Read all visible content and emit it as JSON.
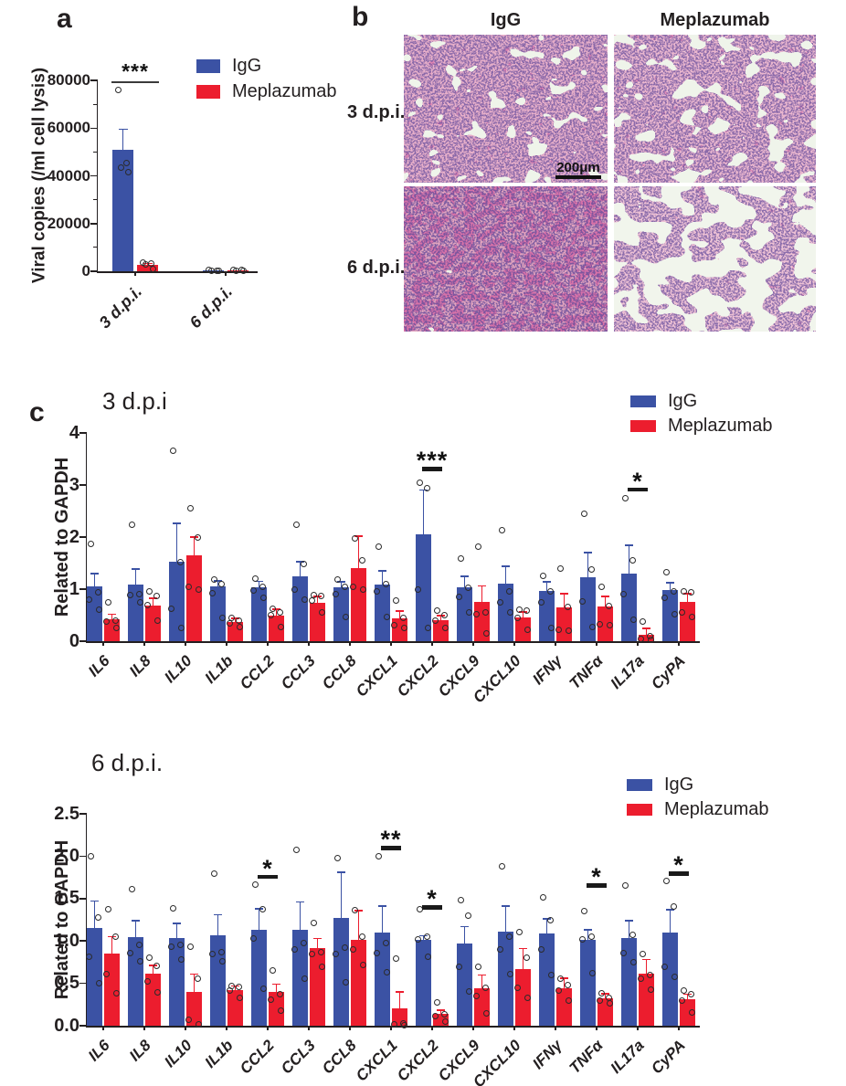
{
  "panels": {
    "a": {
      "label": "a"
    },
    "b": {
      "label": "b",
      "column_headers": [
        "IgG",
        "Meplazumab"
      ],
      "row_labels": [
        "3 d.p.i.",
        "6 d.p.i."
      ],
      "scale_bar_label": "200μm"
    },
    "c": {
      "label": "c"
    }
  },
  "colors": {
    "igg_blue": "#3B52A4",
    "meplazumab_red": "#EC1D2E",
    "text": "#231F20"
  },
  "chart_data": [
    {
      "id": "viral_copies",
      "panel": "a",
      "type": "bar",
      "title": "",
      "ylabel": "Viral copies (/ml cell lysis)",
      "ylim": [
        0,
        80000
      ],
      "yticks": [
        0,
        20000,
        40000,
        60000,
        80000
      ],
      "ytick_labels": [
        "0",
        "20000",
        "40000",
        "60000",
        "80000"
      ],
      "grid": false,
      "legend_position": "top-right",
      "categories": [
        "3 d.p.i.",
        "6 d.p.i."
      ],
      "series": [
        {
          "name": "IgG",
          "color": "#3B52A4",
          "values": [
            51000,
            300
          ],
          "errors": [
            8500,
            150
          ],
          "points": [
            [
              76000,
              45500,
              43500,
              41500
            ],
            [
              500,
              350,
              250,
              150
            ]
          ]
        },
        {
          "name": "Meplazumab",
          "color": "#EC1D2E",
          "values": [
            2500,
            350
          ],
          "errors": [
            700,
            150
          ],
          "points": [
            [
              3600,
              3300,
              3000,
              900
            ],
            [
              600,
              450,
              350,
              250
            ]
          ]
        }
      ],
      "significance": [
        {
          "category": "3 d.p.i.",
          "label": "***",
          "y": 79500,
          "span": "pair"
        }
      ]
    },
    {
      "id": "cytokines_3dpi",
      "panel": "c",
      "type": "bar",
      "title": "3 d.p.i",
      "ylabel": "Related to GAPDH",
      "ylim": [
        0,
        4
      ],
      "yticks": [
        0,
        1,
        2,
        3,
        4
      ],
      "ytick_labels": [
        "0",
        "1",
        "2",
        "3",
        "4"
      ],
      "grid": false,
      "legend_position": "top-right",
      "categories": [
        "IL6",
        "IL8",
        "IL10",
        "IL1b",
        "CCL2",
        "CCL3",
        "CCL8",
        "CXCL1",
        "CXCL2",
        "CXCL9",
        "CXCL10",
        "IFNγ",
        "TNFα",
        "IL17a",
        "CyPA"
      ],
      "series": [
        {
          "name": "IgG",
          "color": "#3B52A4",
          "values": [
            1.05,
            1.09,
            1.52,
            1.05,
            1.04,
            1.25,
            1.04,
            1.09,
            2.05,
            1.04,
            1.11,
            0.97,
            1.23,
            1.3,
            0.98
          ],
          "errors": [
            0.25,
            0.3,
            0.74,
            0.11,
            0.11,
            0.28,
            0.1,
            0.26,
            0.85,
            0.21,
            0.33,
            0.17,
            0.47,
            0.54,
            0.14
          ],
          "points": [
            [
              1.86,
              0.94,
              0.79,
              0.6
            ],
            [
              2.23,
              0.9,
              0.88,
              0.74
            ],
            [
              3.65,
              1.51,
              0.63,
              0.26
            ],
            [
              1.18,
              1.1,
              0.92,
              0.44
            ],
            [
              1.21,
              1.05,
              0.98,
              0.84
            ],
            [
              2.23,
              1.49,
              1.0,
              0.79
            ],
            [
              1.18,
              1.05,
              0.91,
              0.46
            ],
            [
              1.81,
              1.1,
              0.95,
              0.46
            ],
            [
              3.04,
              2.93,
              1.0,
              0.25
            ],
            [
              1.58,
              1.02,
              0.85,
              0.55
            ],
            [
              2.14,
              0.95,
              0.75,
              0.56
            ],
            [
              1.25,
              0.95,
              0.74,
              0.25
            ],
            [
              2.44,
              1.38,
              0.77,
              0.28
            ],
            [
              2.75,
              1.56,
              0.9,
              0.42
            ],
            [
              1.32,
              0.95,
              0.83,
              0.51
            ]
          ]
        },
        {
          "name": "Meplazumab",
          "color": "#EC1D2E",
          "values": [
            0.42,
            0.68,
            1.65,
            0.36,
            0.49,
            0.74,
            1.4,
            0.44,
            0.4,
            0.75,
            0.46,
            0.65,
            0.67,
            0.12,
            0.75
          ],
          "errors": [
            0.1,
            0.14,
            0.35,
            0.08,
            0.12,
            0.12,
            0.62,
            0.14,
            0.09,
            0.31,
            0.1,
            0.26,
            0.19,
            0.13,
            0.16
          ],
          "points": [
            [
              0.74,
              0.4,
              0.38,
              0.25
            ],
            [
              0.95,
              0.86,
              0.7,
              0.39
            ],
            [
              2.56,
              2.0,
              1.05,
              1.0
            ],
            [
              0.44,
              0.4,
              0.35,
              0.28
            ],
            [
              0.62,
              0.55,
              0.5,
              0.28
            ],
            [
              0.88,
              0.86,
              0.78,
              0.55
            ],
            [
              1.98,
              1.55,
              1.05,
              1.0
            ],
            [
              0.78,
              0.45,
              0.3,
              0.25
            ],
            [
              0.58,
              0.5,
              0.4,
              0.25
            ],
            [
              1.81,
              0.55,
              0.52,
              0.15
            ],
            [
              0.6,
              0.58,
              0.45,
              0.22
            ],
            [
              1.4,
              0.66,
              0.22,
              0.2
            ],
            [
              1.05,
              0.68,
              0.32,
              0.3
            ],
            [
              0.37,
              0.1,
              0.05,
              0.02
            ],
            [
              0.95,
              0.93,
              0.56,
              0.47
            ]
          ]
        }
      ],
      "significance": [
        {
          "category": "CXCL2",
          "label": "***",
          "y": 3.35,
          "span": "center"
        },
        {
          "category": "IL17a",
          "label": "*",
          "y": 2.95,
          "span": "center"
        }
      ]
    },
    {
      "id": "cytokines_6dpi",
      "panel": "c",
      "type": "bar",
      "title": "6 d.p.i.",
      "ylabel": "Related to GAPDH",
      "ylim": [
        0,
        2.5
      ],
      "yticks": [
        0,
        0.5,
        1.0,
        1.5,
        2.0,
        2.5
      ],
      "ytick_labels": [
        "0.0",
        "0.5",
        "1.0",
        "1.5",
        "2.0",
        "2.5"
      ],
      "grid": false,
      "legend_position": "top-right",
      "categories": [
        "IL6",
        "IL8",
        "IL10",
        "IL1b",
        "CCL2",
        "CCL3",
        "CCL8",
        "CXCL1",
        "CXCL2",
        "CXCL9",
        "CXCL10",
        "IFNγ",
        "TNFα",
        "IL17a",
        "CyPA"
      ],
      "series": [
        {
          "name": "IgG",
          "color": "#3B52A4",
          "values": [
            1.15,
            1.05,
            1.03,
            1.07,
            1.13,
            1.13,
            1.27,
            1.1,
            1.01,
            0.97,
            1.11,
            1.09,
            1.01,
            1.03,
            1.1
          ],
          "errors": [
            0.32,
            0.19,
            0.18,
            0.24,
            0.25,
            0.33,
            0.54,
            0.31,
            0.05,
            0.2,
            0.3,
            0.17,
            0.12,
            0.21,
            0.27
          ],
          "points": [
            [
              2.0,
              1.28,
              0.81,
              0.5
            ],
            [
              1.61,
              0.95,
              0.86,
              0.76
            ],
            [
              1.38,
              0.95,
              0.93,
              0.78
            ],
            [
              1.79,
              0.87,
              0.85,
              0.76
            ],
            [
              1.67,
              1.37,
              1.03,
              0.44
            ],
            [
              2.07,
              0.97,
              0.9,
              0.56
            ],
            [
              1.98,
              0.92,
              0.85,
              0.51
            ],
            [
              2.0,
              0.97,
              0.86,
              0.63
            ],
            [
              1.37,
              1.05,
              1.02,
              0.81
            ],
            [
              1.48,
              1.3,
              0.7,
              0.4
            ],
            [
              1.88,
              1.05,
              0.9,
              0.61
            ],
            [
              1.51,
              1.25,
              0.9,
              0.6
            ],
            [
              1.35,
              1.05,
              1.02,
              0.62
            ],
            [
              1.65,
              1.07,
              0.86,
              0.75
            ],
            [
              1.71,
              1.41,
              0.7,
              0.58
            ]
          ]
        },
        {
          "name": "Meplazumab",
          "color": "#EC1D2E",
          "values": [
            0.85,
            0.61,
            0.4,
            0.42,
            0.4,
            0.92,
            1.01,
            0.21,
            0.14,
            0.44,
            0.67,
            0.44,
            0.32,
            0.61,
            0.31
          ],
          "errors": [
            0.2,
            0.1,
            0.21,
            0.05,
            0.09,
            0.11,
            0.35,
            0.19,
            0.04,
            0.16,
            0.24,
            0.12,
            0.06,
            0.17,
            0.06
          ],
          "points": [
            [
              1.37,
              1.05,
              0.61,
              0.38
            ],
            [
              0.8,
              0.71,
              0.52,
              0.39
            ],
            [
              0.93,
              0.55,
              0.07,
              0.02
            ],
            [
              0.47,
              0.46,
              0.42,
              0.33
            ],
            [
              0.65,
              0.37,
              0.31,
              0.18
            ],
            [
              1.21,
              0.87,
              0.85,
              0.7
            ],
            [
              1.36,
              1.05,
              0.9,
              0.72
            ],
            [
              0.79,
              0.03,
              0.02,
              0.01
            ],
            [
              0.27,
              0.13,
              0.11,
              0.05
            ],
            [
              0.69,
              0.45,
              0.35,
              0.15
            ],
            [
              1.1,
              0.8,
              0.45,
              0.33
            ],
            [
              0.55,
              0.48,
              0.42,
              0.3
            ],
            [
              0.38,
              0.33,
              0.3,
              0.26
            ],
            [
              0.85,
              0.6,
              0.55,
              0.43
            ],
            [
              0.42,
              0.37,
              0.3,
              0.16
            ]
          ]
        }
      ],
      "significance": [
        {
          "category": "CCL2",
          "label": "*",
          "y": 1.78,
          "span": "center"
        },
        {
          "category": "CXCL1",
          "label": "**",
          "y": 2.12,
          "span": "center"
        },
        {
          "category": "CXCL2",
          "label": "*",
          "y": 1.42,
          "span": "center"
        },
        {
          "category": "TNFα",
          "label": "*",
          "y": 1.68,
          "span": "center"
        },
        {
          "category": "CyPA",
          "label": "*",
          "y": 1.82,
          "span": "center"
        }
      ]
    }
  ]
}
